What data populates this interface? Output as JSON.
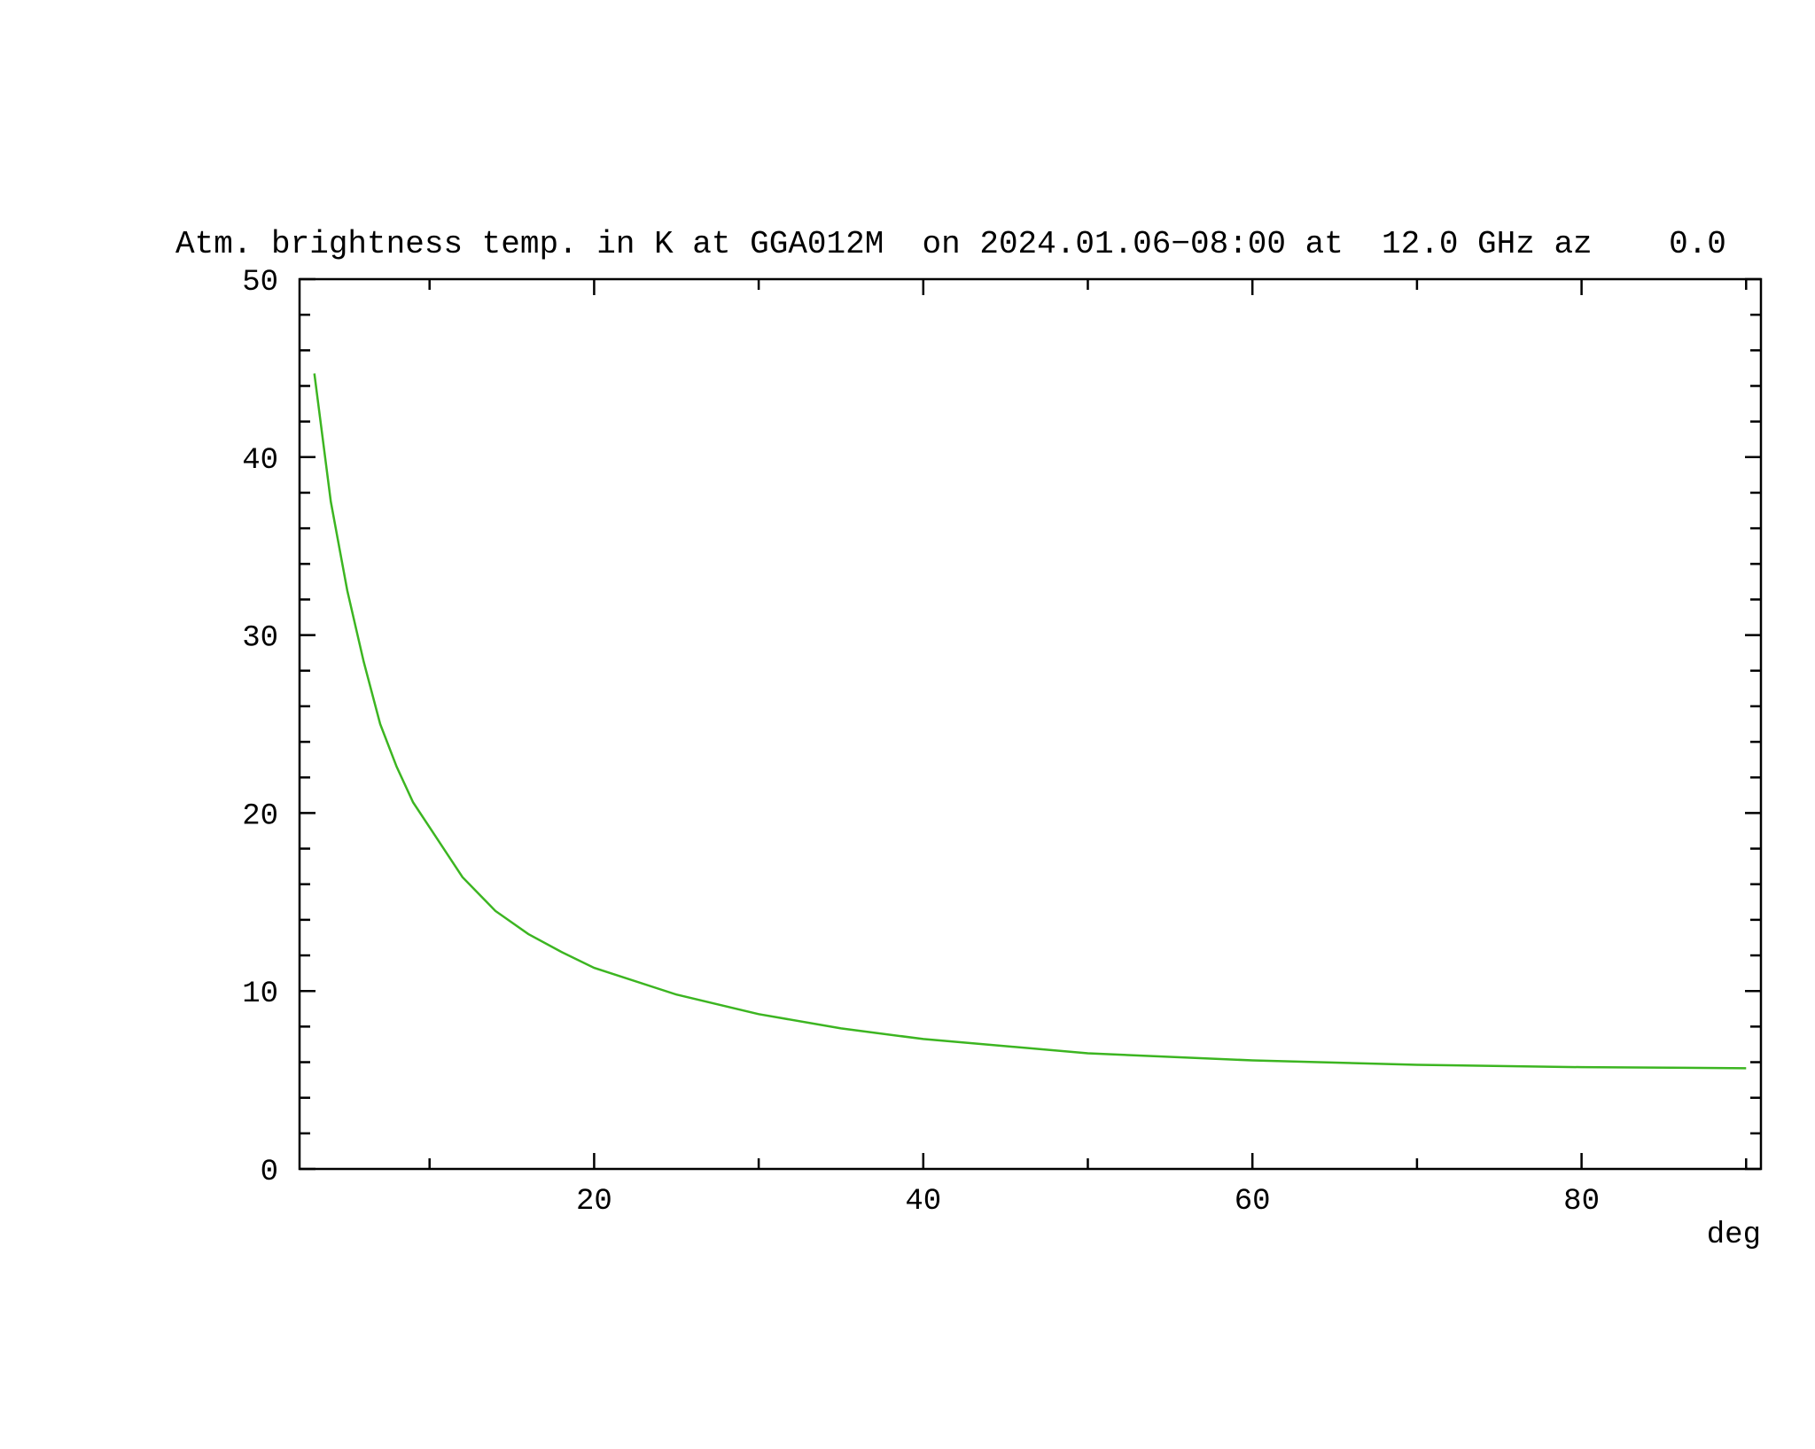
{
  "chart_data": {
    "type": "line",
    "title": "Atm. brightness temp. in K at GGA012M  on 2024.01.06−08:00 at  12.0 GHz az    0.0",
    "x_label": "deg",
    "xlim": [
      2.1,
      90.9
    ],
    "ylim": [
      0,
      50
    ],
    "xticks": [
      20,
      40,
      60,
      80
    ],
    "yticks": [
      0,
      10,
      20,
      30,
      40,
      50
    ],
    "xminorticks": [
      10,
      30,
      50,
      70,
      90
    ],
    "yminorticks": [
      2,
      4,
      6,
      8,
      12,
      14,
      16,
      18,
      22,
      24,
      26,
      28,
      32,
      34,
      36,
      38,
      42,
      44,
      46,
      48
    ],
    "x": [
      3,
      4,
      5,
      6,
      7,
      8,
      9,
      10,
      12,
      14,
      16,
      18,
      20,
      25,
      30,
      35,
      40,
      50,
      60,
      70,
      80,
      90
    ],
    "series": [
      {
        "color": "#3cb521",
        "values": [
          44.7,
          37.5,
          32.5,
          28.5,
          25.0,
          22.6,
          20.6,
          19.2,
          16.4,
          14.5,
          13.2,
          12.2,
          11.3,
          9.8,
          8.7,
          7.9,
          7.3,
          6.5,
          6.1,
          5.85,
          5.72,
          5.66
        ]
      }
    ]
  }
}
